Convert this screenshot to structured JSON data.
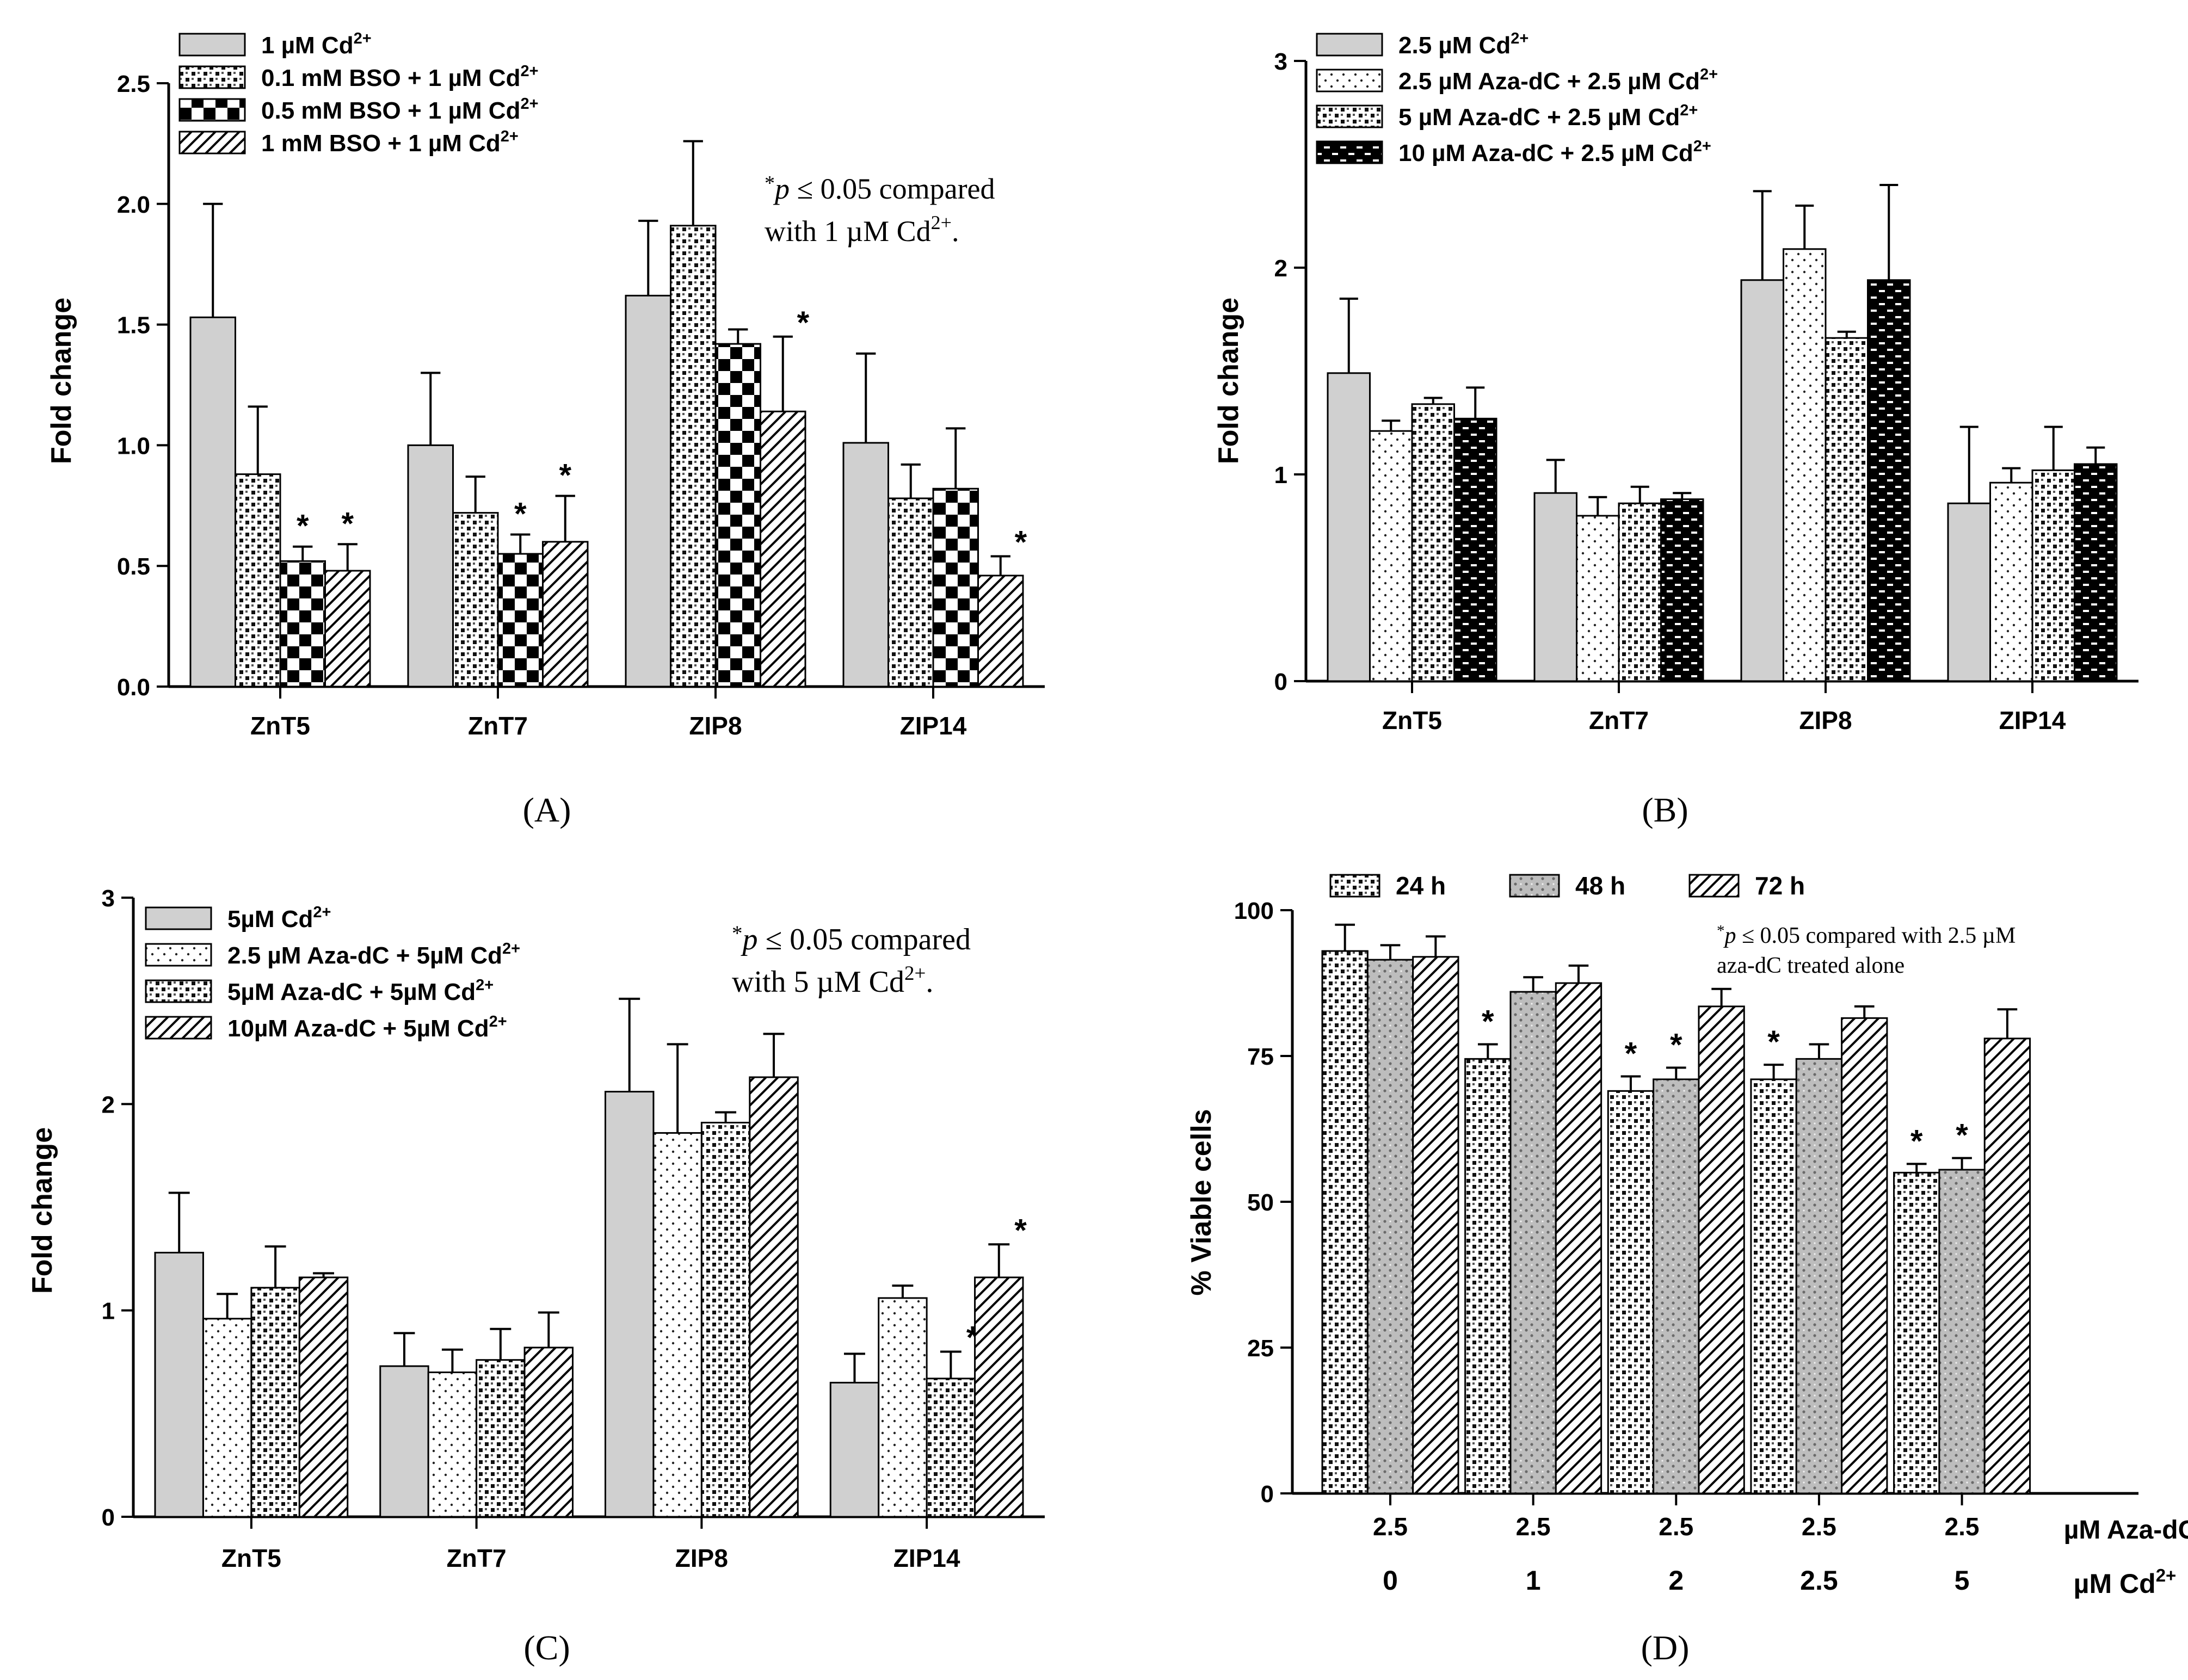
{
  "colors": {
    "ink": "#000000",
    "gray_bar": "#d0d0d0",
    "blue_label": "#4a7ec0",
    "light_fill": "#ffffff"
  },
  "chart_data": [
    {
      "panel": "A",
      "panel_label": "(A)",
      "type": "bar",
      "ylabel": "Fold change",
      "ylim": [
        0,
        2.5
      ],
      "yticks": [
        "0.0",
        "0.5",
        "1.0",
        "1.5",
        "2.0",
        "2.5"
      ],
      "categories": [
        "ZnT5",
        "ZnT7",
        "ZIP8",
        "ZIP14"
      ],
      "legend_position": "top-left",
      "note_lines": [
        "*p ≤ 0.05 compared",
        "with 1 µM Cd2+."
      ],
      "series": [
        {
          "name": "1 µM Cd",
          "sup": "2+",
          "pattern": "gray",
          "values": [
            1.53,
            1.0,
            1.62,
            1.01
          ],
          "errors": [
            0.47,
            0.3,
            0.31,
            0.37
          ],
          "stars": [
            false,
            false,
            false,
            false
          ]
        },
        {
          "name": "0.1 mM BSO + 1 µM Cd",
          "sup": "2+",
          "pattern": "check",
          "values": [
            0.88,
            0.72,
            1.91,
            0.78
          ],
          "errors": [
            0.28,
            0.15,
            0.35,
            0.14
          ],
          "stars": [
            false,
            false,
            false,
            false
          ]
        },
        {
          "name": "0.5 mM BSO + 1 µM Cd",
          "sup": "2+",
          "pattern": "bigcheck",
          "values": [
            0.52,
            0.55,
            1.42,
            0.82
          ],
          "errors": [
            0.06,
            0.08,
            0.06,
            0.25
          ],
          "stars": [
            true,
            true,
            false,
            false
          ]
        },
        {
          "name": "1 mM BSO + 1 µM Cd",
          "sup": "2+",
          "pattern": "hatch",
          "values": [
            0.48,
            0.6,
            1.14,
            0.46
          ],
          "errors": [
            0.11,
            0.19,
            0.31,
            0.08
          ],
          "stars": [
            true,
            true,
            true,
            true
          ]
        }
      ]
    },
    {
      "panel": "B",
      "panel_label": "(B)",
      "type": "bar",
      "ylabel": "Fold change",
      "ylim": [
        0,
        3
      ],
      "yticks": [
        "0",
        "1",
        "2",
        "3"
      ],
      "categories": [
        "ZnT5",
        "ZnT7",
        "ZIP8",
        "ZIP14"
      ],
      "legend_position": "top-left",
      "note_lines": [],
      "series": [
        {
          "name": "2.5 µM Cd",
          "sup": "2+",
          "pattern": "gray",
          "values": [
            1.49,
            0.91,
            1.94,
            0.86
          ],
          "errors": [
            0.36,
            0.16,
            0.43,
            0.37
          ],
          "stars": [
            false,
            false,
            false,
            false
          ]
        },
        {
          "name": "2.5 µM Aza-dC + 2.5 µM Cd",
          "sup": "2+",
          "pattern": "dots",
          "values": [
            1.21,
            0.8,
            2.09,
            0.96
          ],
          "errors": [
            0.05,
            0.09,
            0.21,
            0.07
          ],
          "stars": [
            false,
            false,
            false,
            false
          ]
        },
        {
          "name": "5 µM Aza-dC + 2.5 µM Cd",
          "sup": "2+",
          "pattern": "check",
          "values": [
            1.34,
            0.86,
            1.66,
            1.02
          ],
          "errors": [
            0.03,
            0.08,
            0.03,
            0.21
          ],
          "stars": [
            false,
            false,
            false,
            false
          ]
        },
        {
          "name": "10 µM Aza-dC + 2.5 µM Cd",
          "sup": "2+",
          "pattern": "brick",
          "values": [
            1.27,
            0.88,
            1.94,
            1.05
          ],
          "errors": [
            0.15,
            0.03,
            0.46,
            0.08
          ],
          "stars": [
            false,
            false,
            false,
            false
          ]
        }
      ]
    },
    {
      "panel": "C",
      "panel_label": "(C)",
      "type": "bar",
      "ylabel": "Fold change",
      "ylim": [
        0,
        3
      ],
      "yticks": [
        "0",
        "1",
        "2",
        "3"
      ],
      "categories": [
        "ZnT5",
        "ZnT7",
        "ZIP8",
        "ZIP14"
      ],
      "legend_position": "top-left",
      "note_lines": [
        "*p ≤ 0.05 compared",
        "with 5 µM Cd2+."
      ],
      "series": [
        {
          "name": "5µM Cd",
          "sup": "2+",
          "pattern": "gray",
          "values": [
            1.28,
            0.73,
            2.06,
            0.65
          ],
          "errors": [
            0.29,
            0.16,
            0.45,
            0.14
          ],
          "stars": [
            false,
            false,
            false,
            false
          ]
        },
        {
          "name": "2.5 µM Aza-dC +  5µM Cd",
          "sup": "2+",
          "pattern": "dots",
          "values": [
            0.96,
            0.7,
            1.86,
            1.06
          ],
          "errors": [
            0.12,
            0.11,
            0.43,
            0.06
          ],
          "stars": [
            false,
            false,
            false,
            false
          ]
        },
        {
          "name": "5µM Aza-dC + 5µM Cd",
          "sup": "2+",
          "pattern": "check",
          "values": [
            1.11,
            0.76,
            1.91,
            0.67
          ],
          "errors": [
            0.2,
            0.15,
            0.05,
            0.13
          ],
          "stars": [
            false,
            false,
            false,
            true
          ]
        },
        {
          "name": "10µM Aza-dC + 5µM Cd",
          "sup": "2+",
          "pattern": "hatch",
          "values": [
            1.16,
            0.82,
            2.13,
            1.16
          ],
          "errors": [
            0.02,
            0.17,
            0.21,
            0.16
          ],
          "stars": [
            false,
            false,
            false,
            true
          ]
        }
      ]
    },
    {
      "panel": "D",
      "panel_label": "(D)",
      "type": "bar",
      "ylabel": "% Viable cells",
      "ylim": [
        0,
        100
      ],
      "yticks": [
        "0",
        "25",
        "50",
        "75",
        "100"
      ],
      "categories": [
        "2.5",
        "2.5",
        "2.5",
        "2.5",
        "2.5"
      ],
      "categories2": [
        "0",
        "1",
        "2",
        "2.5",
        "5"
      ],
      "axis_label1": "µM Aza-dC",
      "axis_label2": "µM Cd",
      "axis_label2_sup": "2+",
      "legend_position": "top",
      "note_lines": [
        "*p ≤ 0.05 compared with 2.5 µM",
        "aza-dC treated alone"
      ],
      "series": [
        {
          "name": "24 h",
          "sup": "",
          "pattern": "check",
          "values": [
            93,
            74.5,
            69,
            71,
            55
          ],
          "errors": [
            4.5,
            2.5,
            2.5,
            2.5,
            1.5
          ],
          "stars": [
            false,
            true,
            true,
            true,
            true
          ]
        },
        {
          "name": "48 h",
          "sup": "",
          "pattern": "graydots",
          "values": [
            91.5,
            86,
            71,
            74.5,
            55.5
          ],
          "errors": [
            2.5,
            2.5,
            2,
            2.5,
            2
          ],
          "stars": [
            false,
            false,
            true,
            false,
            true
          ]
        },
        {
          "name": "72 h",
          "sup": "",
          "pattern": "hatch",
          "values": [
            92,
            87.5,
            83.5,
            81.5,
            78
          ],
          "errors": [
            3.5,
            3,
            3,
            2,
            5
          ],
          "stars": [
            false,
            false,
            false,
            false,
            false
          ]
        }
      ]
    }
  ]
}
